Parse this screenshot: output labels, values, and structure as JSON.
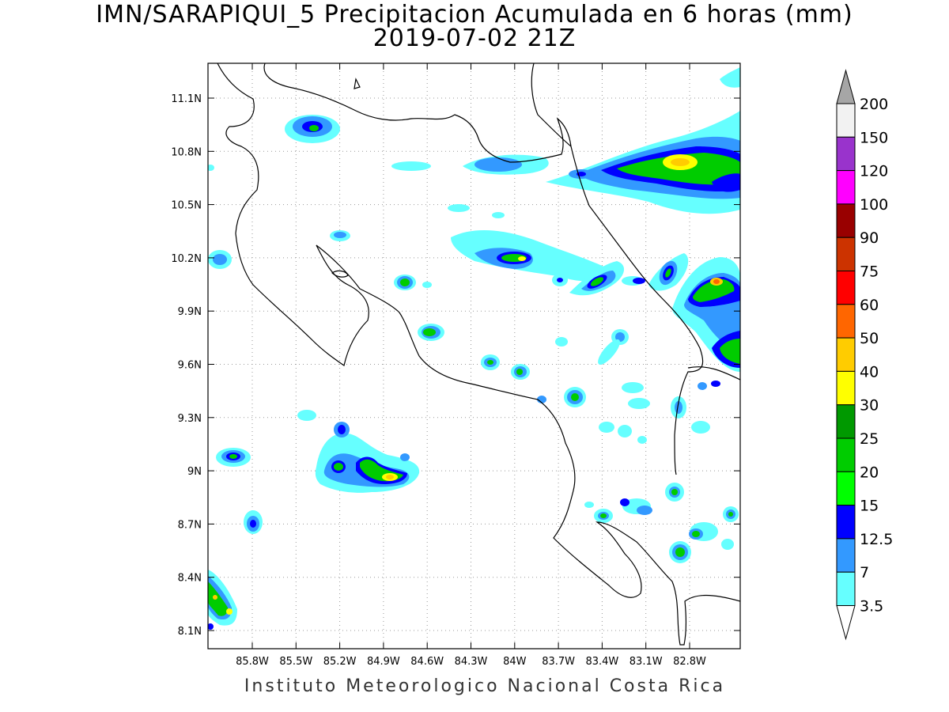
{
  "title_line1": "IMN/SARAPIQUI_5 Precipitacion Acumulada en 6 horas (mm)",
  "title_line2": "2019-07-02 21Z",
  "footer": "Instituto Meteorologico Nacional Costa Rica",
  "axes": {
    "lon_ticks": [
      "85.8W",
      "85.5W",
      "85.2W",
      "84.9W",
      "84.6W",
      "84.3W",
      "84W",
      "83.7W",
      "83.4W",
      "83.1W",
      "82.8W"
    ],
    "lat_ticks": [
      "11.1N",
      "10.8N",
      "10.5N",
      "10.2N",
      "9.9N",
      "9.6N",
      "9.3N",
      "9N",
      "8.7N",
      "8.4N",
      "8.1N"
    ]
  },
  "colorbar": {
    "levels": [
      "200",
      "150",
      "120",
      "100",
      "90",
      "75",
      "60",
      "50",
      "40",
      "30",
      "25",
      "20",
      "15",
      "12.5",
      "7",
      "3.5"
    ],
    "colors": [
      "#a6a6a6",
      "#f2f2f2",
      "#9933cc",
      "#ff00ff",
      "#990000",
      "#cc3300",
      "#ff0000",
      "#ff6600",
      "#ffcc00",
      "#ffff00",
      "#009900",
      "#00cc00",
      "#00ff00",
      "#0000ff",
      "#3399ff",
      "#66ffff"
    ]
  }
}
